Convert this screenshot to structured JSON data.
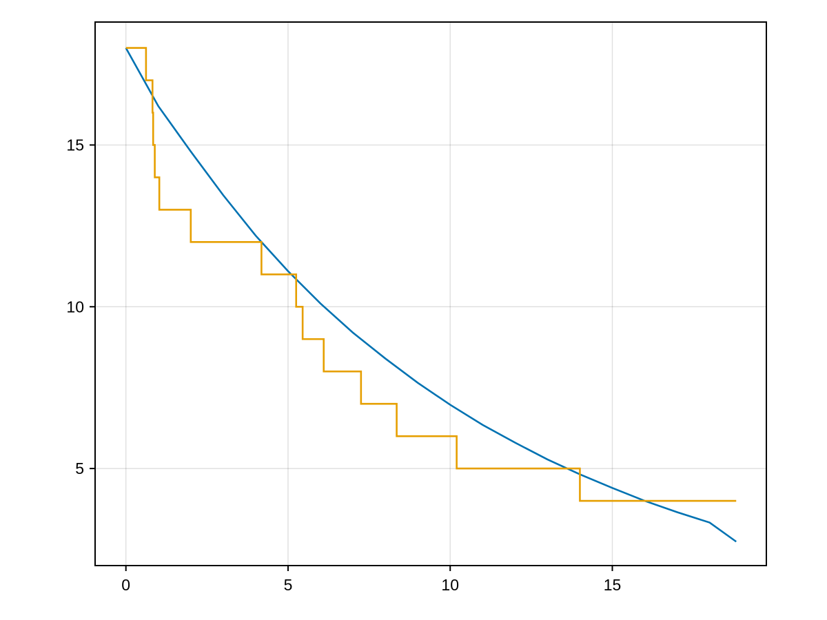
{
  "chart_data": {
    "type": "line",
    "title": "",
    "xlabel": "",
    "ylabel": "",
    "xlim": [
      -0.95,
      19.75
    ],
    "ylim": [
      2.0,
      18.8
    ],
    "x_ticks": [
      0,
      5,
      10,
      15
    ],
    "y_ticks": [
      5,
      10,
      15
    ],
    "grid": true,
    "legend": "none",
    "series": [
      {
        "type": "line",
        "color": "#0072B2",
        "x": [
          0,
          1,
          2,
          3,
          4,
          5,
          6,
          7,
          8,
          9,
          10,
          11,
          12,
          13,
          14,
          15,
          16,
          17,
          18,
          18.82
        ],
        "y": [
          18.0,
          16.2,
          14.8,
          13.45,
          12.2,
          11.1,
          10.1,
          9.2,
          8.4,
          7.65,
          6.97,
          6.35,
          5.8,
          5.28,
          4.82,
          4.4,
          4.0,
          3.65,
          3.33,
          2.74
        ]
      },
      {
        "type": "step",
        "color": "#E69F00",
        "x": [
          0,
          0.62,
          0.62,
          0.82,
          0.82,
          0.84,
          0.84,
          0.89,
          0.89,
          1.03,
          1.03,
          2.0,
          2.0,
          4.18,
          4.18,
          5.25,
          5.25,
          5.45,
          5.45,
          6.1,
          6.1,
          7.25,
          7.25,
          8.35,
          8.35,
          10.2,
          10.2,
          14.0,
          14.0,
          18.82
        ],
        "y": [
          18,
          18,
          17,
          17,
          16,
          16,
          15,
          15,
          14,
          14,
          13,
          13,
          12,
          12,
          11,
          11,
          10,
          10,
          9,
          9,
          8,
          8,
          7,
          7,
          6,
          6,
          5,
          5,
          4,
          4
        ]
      }
    ]
  }
}
